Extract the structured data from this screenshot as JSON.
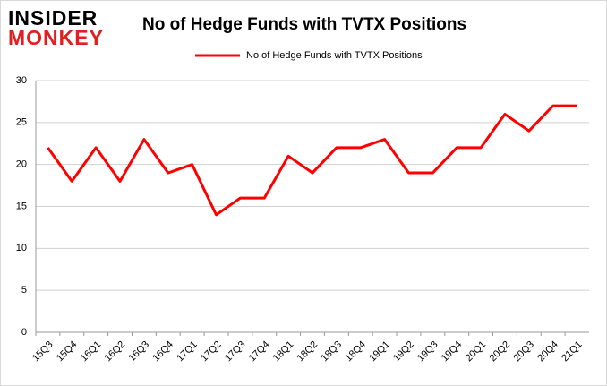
{
  "logo": {
    "line1": "INSIDER",
    "line2": "MONKEY"
  },
  "chart_data": {
    "type": "line",
    "title": "No of Hedge Funds with TVTX Positions",
    "categories": [
      "15Q3",
      "15Q4",
      "16Q1",
      "16Q2",
      "16Q3",
      "16Q4",
      "17Q1",
      "17Q2",
      "17Q3",
      "17Q4",
      "18Q1",
      "18Q2",
      "18Q3",
      "18Q4",
      "19Q1",
      "19Q2",
      "19Q3",
      "19Q4",
      "20Q1",
      "20Q2",
      "20Q3",
      "20Q4",
      "21Q1"
    ],
    "series": [
      {
        "name": "No of Hedge Funds with TVTX Positions",
        "color": "#ff0000",
        "values": [
          22,
          18,
          22,
          18,
          23,
          19,
          20,
          14,
          16,
          16,
          21,
          19,
          22,
          22,
          23,
          19,
          19,
          22,
          22,
          26,
          24,
          27,
          27
        ]
      }
    ],
    "ylim": [
      0,
      30
    ],
    "yticks": [
      0,
      5,
      10,
      15,
      20,
      25,
      30
    ],
    "grid": true,
    "legend": "top"
  }
}
